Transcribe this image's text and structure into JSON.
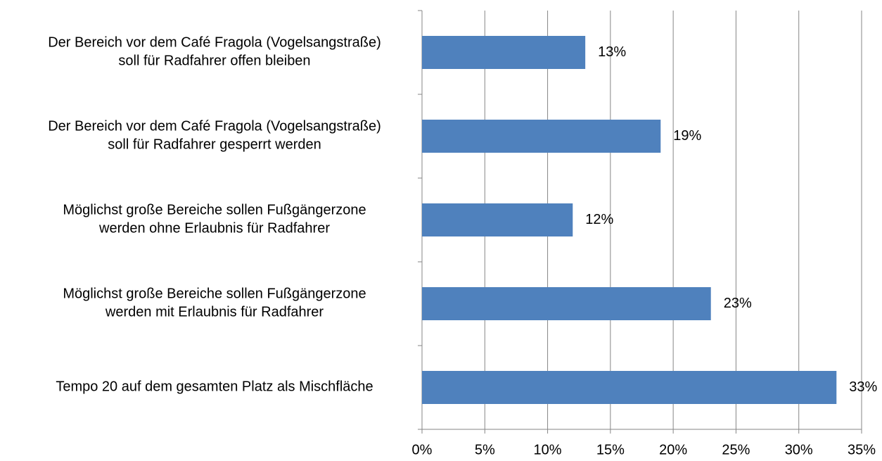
{
  "chart_data": {
    "type": "bar",
    "orientation": "horizontal",
    "categories": [
      [
        "Der Bereich vor dem Café Fragola (Vogelsangstraße)",
        "soll für Radfahrer offen bleiben"
      ],
      [
        "Der Bereich vor dem Café Fragola (Vogelsangstraße)",
        "soll für Radfahrer gesperrt werden"
      ],
      [
        "Möglichst große Bereiche sollen Fußgängerzone",
        "werden ohne Erlaubnis für Radfahrer"
      ],
      [
        "Möglichst große Bereiche sollen Fußgängerzone",
        "werden mit Erlaubnis für Radfahrer"
      ],
      [
        "Tempo 20 auf dem gesamten Platz als Mischfläche"
      ]
    ],
    "values": [
      13,
      19,
      12,
      23,
      33
    ],
    "value_labels": [
      "13%",
      "19%",
      "12%",
      "23%",
      "33%"
    ],
    "color": "#4f81bd",
    "xlim": [
      0,
      35
    ],
    "xticks": [
      {
        "value": 0,
        "label": "0%"
      },
      {
        "value": 5,
        "label": "5%"
      },
      {
        "value": 10,
        "label": "10%"
      },
      {
        "value": 15,
        "label": "15%"
      },
      {
        "value": 20,
        "label": "20%"
      },
      {
        "value": 25,
        "label": "25%"
      },
      {
        "value": 30,
        "label": "30%"
      },
      {
        "value": 35,
        "label": "35%"
      }
    ],
    "grid": true
  }
}
